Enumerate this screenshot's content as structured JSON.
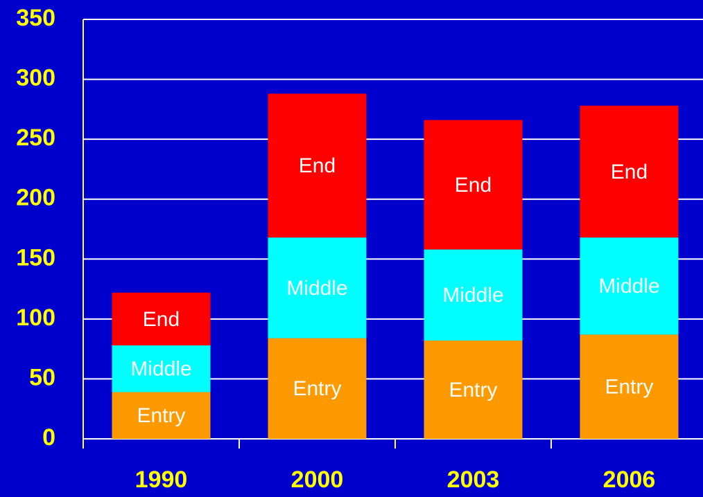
{
  "chart_data": {
    "type": "stacked_bar",
    "categories": [
      "1990",
      "2000",
      "2003",
      "2006"
    ],
    "series": [
      {
        "name": "Entry",
        "color": "#ff9900",
        "values": [
          39,
          84,
          82,
          87
        ]
      },
      {
        "name": "Middle",
        "color": "#00ffff",
        "values": [
          39,
          84,
          76,
          81
        ]
      },
      {
        "name": "End",
        "color": "#ff0000",
        "values": [
          44,
          120,
          108,
          110
        ]
      }
    ],
    "ylim": [
      0,
      350
    ],
    "yticks": [
      0,
      50,
      100,
      150,
      200,
      250,
      300,
      350
    ],
    "grid": true
  }
}
